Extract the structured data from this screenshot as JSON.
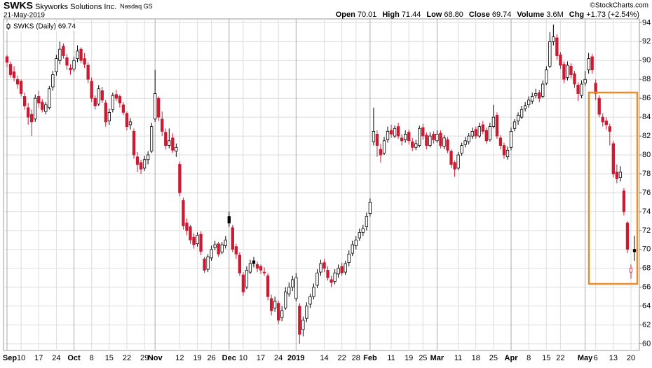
{
  "header": {
    "symbol": "SWKS",
    "name": "Skyworks Solutions Inc.",
    "exchange": "Nasdaq GS",
    "date": "21-May-2019",
    "quote": [
      {
        "label": "Open",
        "value": "70.01"
      },
      {
        "label": "High",
        "value": "71.44"
      },
      {
        "label": "Low",
        "value": "68.80"
      },
      {
        "label": "Close",
        "value": "69.74"
      },
      {
        "label": "Volume",
        "value": "3.6M"
      },
      {
        "label": "Chg",
        "value": "+1.73 (+2.54%)"
      }
    ],
    "credit": "©StockCharts.com"
  },
  "chart_data": {
    "type": "candlestick",
    "legend": "SWKS (Daily) 69.74",
    "categories": [
      "Sep",
      null,
      null,
      null,
      "10",
      null,
      null,
      null,
      null,
      "17",
      null,
      null,
      null,
      null,
      "24",
      null,
      null,
      null,
      null,
      "Oct",
      null,
      null,
      null,
      null,
      "8",
      null,
      null,
      null,
      null,
      "15",
      null,
      null,
      null,
      null,
      "22",
      null,
      null,
      null,
      null,
      "29",
      null,
      null,
      "Nov",
      null,
      null,
      null,
      null,
      null,
      null,
      "12",
      null,
      null,
      null,
      null,
      "19",
      null,
      null,
      null,
      "26",
      null,
      null,
      null,
      null,
      "Dec",
      null,
      null,
      null,
      "10",
      null,
      null,
      null,
      null,
      "17",
      null,
      null,
      null,
      null,
      "24",
      null,
      null,
      null,
      null,
      "2019",
      null,
      null,
      null,
      null,
      null,
      null,
      null,
      "14",
      null,
      null,
      null,
      null,
      "22",
      null,
      null,
      null,
      "28",
      null,
      null,
      null,
      "Feb",
      null,
      null,
      null,
      null,
      null,
      "11",
      null,
      null,
      null,
      null,
      "19",
      null,
      null,
      null,
      "25",
      null,
      null,
      null,
      "Mar",
      null,
      null,
      null,
      null,
      null,
      "11",
      null,
      null,
      null,
      null,
      "18",
      null,
      null,
      null,
      null,
      "25",
      null,
      null,
      null,
      null,
      "Apr",
      null,
      null,
      null,
      null,
      "8",
      null,
      null,
      null,
      null,
      "15",
      null,
      null,
      null,
      "22",
      null,
      null,
      null,
      null,
      null,
      null,
      "May",
      null,
      null,
      "6",
      null,
      null,
      null,
      null,
      "13",
      null,
      null,
      null,
      null,
      "20",
      null
    ],
    "ohlc": [
      [
        90.4,
        90.6,
        89.3,
        89.8
      ],
      [
        89.6,
        89.9,
        88.2,
        88.5
      ],
      [
        88.8,
        89.4,
        87.8,
        88.2
      ],
      [
        88.0,
        88.4,
        87.0,
        87.5
      ],
      [
        87.8,
        88.0,
        86.2,
        86.5
      ],
      [
        86.2,
        86.6,
        84.8,
        85.2
      ],
      [
        85.0,
        85.5,
        83.2,
        84.0
      ],
      [
        84.3,
        84.8,
        82.0,
        83.5
      ],
      [
        83.8,
        86.4,
        83.5,
        86.0
      ],
      [
        86.2,
        86.8,
        85.0,
        85.5
      ],
      [
        85.6,
        85.9,
        84.5,
        84.8
      ],
      [
        84.6,
        85.6,
        84.3,
        85.3
      ],
      [
        85.0,
        87.3,
        84.8,
        87.0
      ],
      [
        87.2,
        88.9,
        86.8,
        88.5
      ],
      [
        88.8,
        90.6,
        88.4,
        90.2
      ],
      [
        90.0,
        92.0,
        89.6,
        91.2
      ],
      [
        91.5,
        91.8,
        90.2,
        90.5
      ],
      [
        90.3,
        90.7,
        89.0,
        89.5
      ],
      [
        89.2,
        89.6,
        88.5,
        89.0
      ],
      [
        89.1,
        90.4,
        88.8,
        90.0
      ],
      [
        90.2,
        91.6,
        89.8,
        91.0
      ],
      [
        91.2,
        91.4,
        89.7,
        90.0
      ],
      [
        90.2,
        90.8,
        89.2,
        89.6
      ],
      [
        89.5,
        89.8,
        87.6,
        88.0
      ],
      [
        87.8,
        88.2,
        85.6,
        86.0
      ],
      [
        86.0,
        86.3,
        84.8,
        85.2
      ],
      [
        85.4,
        87.4,
        85.2,
        87.0
      ],
      [
        86.8,
        87.2,
        85.5,
        85.8
      ],
      [
        85.5,
        85.8,
        83.0,
        83.5
      ],
      [
        83.6,
        84.9,
        83.2,
        84.5
      ],
      [
        84.8,
        86.6,
        84.5,
        86.3
      ],
      [
        86.4,
        86.9,
        85.7,
        86.0
      ],
      [
        86.2,
        86.4,
        85.0,
        85.5
      ],
      [
        85.3,
        85.6,
        84.2,
        84.5
      ],
      [
        84.4,
        84.6,
        82.6,
        83.0
      ],
      [
        83.2,
        83.9,
        82.7,
        83.5
      ],
      [
        82.5,
        82.8,
        79.6,
        80.0
      ],
      [
        79.8,
        80.3,
        78.2,
        79.0
      ],
      [
        79.2,
        79.5,
        78.0,
        78.5
      ],
      [
        78.6,
        79.9,
        78.3,
        79.5
      ],
      [
        79.5,
        80.4,
        79.0,
        80.0
      ],
      [
        80.4,
        83.4,
        80.2,
        83.0
      ],
      [
        83.8,
        89.0,
        83.5,
        86.5
      ],
      [
        86.0,
        86.2,
        83.6,
        84.0
      ],
      [
        83.8,
        84.6,
        82.0,
        82.5
      ],
      [
        82.4,
        82.8,
        80.6,
        81.0
      ],
      [
        81.0,
        82.8,
        80.7,
        81.5
      ],
      [
        81.8,
        82.3,
        80.2,
        80.5
      ],
      [
        80.4,
        81.2,
        79.8,
        80.8
      ],
      [
        79.0,
        79.3,
        75.6,
        76.0
      ],
      [
        75.2,
        75.5,
        72.1,
        72.5
      ],
      [
        72.8,
        73.3,
        71.5,
        72.0
      ],
      [
        72.4,
        72.6,
        70.6,
        71.0
      ],
      [
        71.3,
        71.7,
        70.1,
        70.5
      ],
      [
        70.6,
        71.8,
        70.3,
        71.5
      ],
      [
        71.6,
        71.9,
        69.4,
        69.8
      ],
      [
        69.0,
        69.2,
        67.5,
        67.8
      ],
      [
        67.9,
        69.5,
        67.6,
        69.2
      ],
      [
        69.1,
        70.4,
        68.8,
        70.0
      ],
      [
        70.2,
        70.9,
        69.9,
        70.5
      ],
      [
        70.6,
        70.8,
        69.2,
        69.5
      ],
      [
        69.7,
        70.8,
        69.5,
        70.5
      ],
      [
        70.4,
        71.4,
        70.1,
        71.0
      ],
      [
        73.5,
        74.0,
        72.4,
        72.8
      ],
      [
        72.3,
        72.6,
        69.7,
        70.0
      ],
      [
        70.3,
        70.6,
        69.0,
        69.5
      ],
      [
        69.4,
        69.7,
        67.2,
        67.5
      ],
      [
        67.3,
        67.6,
        65.1,
        65.5
      ],
      [
        66.0,
        68.2,
        65.8,
        67.8
      ],
      [
        67.6,
        68.9,
        67.4,
        68.5
      ],
      [
        68.8,
        69.2,
        68.1,
        68.5
      ],
      [
        68.4,
        68.7,
        67.6,
        68.0
      ],
      [
        68.2,
        68.4,
        67.4,
        67.8
      ],
      [
        67.6,
        68.1,
        67.2,
        67.5
      ],
      [
        67.2,
        67.5,
        64.6,
        65.0
      ],
      [
        64.8,
        65.2,
        63.0,
        63.5
      ],
      [
        63.8,
        65.0,
        63.4,
        64.5
      ],
      [
        64.3,
        64.6,
        62.1,
        62.5
      ],
      [
        62.8,
        64.0,
        62.4,
        63.5
      ],
      [
        63.8,
        66.0,
        63.6,
        65.5
      ],
      [
        65.3,
        66.5,
        65.0,
        66.0
      ],
      [
        66.0,
        67.2,
        65.6,
        66.8
      ],
      [
        64.8,
        67.5,
        64.5,
        67.0
      ],
      [
        64.0,
        64.3,
        60.0,
        61.0
      ],
      [
        61.5,
        62.9,
        60.8,
        62.5
      ],
      [
        62.7,
        64.4,
        62.3,
        64.0
      ],
      [
        64.2,
        65.3,
        63.8,
        65.0
      ],
      [
        65.0,
        66.4,
        64.7,
        66.0
      ],
      [
        66.2,
        67.9,
        65.9,
        67.5
      ],
      [
        67.6,
        68.9,
        67.2,
        68.5
      ],
      [
        68.6,
        69.0,
        67.6,
        68.0
      ],
      [
        67.8,
        68.2,
        66.7,
        67.0
      ],
      [
        66.8,
        67.2,
        66.0,
        66.5
      ],
      [
        66.6,
        67.9,
        66.3,
        67.5
      ],
      [
        67.4,
        68.4,
        67.0,
        68.0
      ],
      [
        68.2,
        68.6,
        67.2,
        67.5
      ],
      [
        67.6,
        68.8,
        67.3,
        68.5
      ],
      [
        68.6,
        69.9,
        68.2,
        69.5
      ],
      [
        69.6,
        70.9,
        69.3,
        70.5
      ],
      [
        70.4,
        71.4,
        70.0,
        71.0
      ],
      [
        71.2,
        72.2,
        70.9,
        71.8
      ],
      [
        71.8,
        72.6,
        71.4,
        72.2
      ],
      [
        72.4,
        73.9,
        72.0,
        73.5
      ],
      [
        73.8,
        75.4,
        73.5,
        75.0
      ],
      [
        81.4,
        85.0,
        81.0,
        82.5
      ],
      [
        82.2,
        82.6,
        79.8,
        81.0
      ],
      [
        80.6,
        81.2,
        79.2,
        80.0
      ],
      [
        80.2,
        81.9,
        80.0,
        81.5
      ],
      [
        81.6,
        83.0,
        81.3,
        82.5
      ],
      [
        82.6,
        83.2,
        81.8,
        82.2
      ],
      [
        82.0,
        83.1,
        81.8,
        82.8
      ],
      [
        83.0,
        83.4,
        81.7,
        82.0
      ],
      [
        81.8,
        82.2,
        81.0,
        81.5
      ],
      [
        81.6,
        82.6,
        81.3,
        82.2
      ],
      [
        82.4,
        82.7,
        81.1,
        81.5
      ],
      [
        81.4,
        81.8,
        80.4,
        80.8
      ],
      [
        80.8,
        81.6,
        80.5,
        81.2
      ],
      [
        81.0,
        83.1,
        80.8,
        82.8
      ],
      [
        82.9,
        83.3,
        81.6,
        82.0
      ],
      [
        82.1,
        82.4,
        80.6,
        81.0
      ],
      [
        81.0,
        82.4,
        80.8,
        82.0
      ],
      [
        82.2,
        82.5,
        81.2,
        81.6
      ],
      [
        81.5,
        82.6,
        81.3,
        82.2
      ],
      [
        82.3,
        82.6,
        80.7,
        81.0
      ],
      [
        80.9,
        82.1,
        80.6,
        81.8
      ],
      [
        81.6,
        81.9,
        80.2,
        80.5
      ],
      [
        80.4,
        80.6,
        78.6,
        79.0
      ],
      [
        79.2,
        79.4,
        77.7,
        78.5
      ],
      [
        78.6,
        80.3,
        78.4,
        80.0
      ],
      [
        80.2,
        81.3,
        79.9,
        81.0
      ],
      [
        81.1,
        81.9,
        80.8,
        81.5
      ],
      [
        81.4,
        82.3,
        81.1,
        82.0
      ],
      [
        82.0,
        82.9,
        81.7,
        82.5
      ],
      [
        82.7,
        83.0,
        81.7,
        82.0
      ],
      [
        82.0,
        83.4,
        81.8,
        83.0
      ],
      [
        83.2,
        83.6,
        82.2,
        82.5
      ],
      [
        82.6,
        82.9,
        81.2,
        81.5
      ],
      [
        81.6,
        83.4,
        81.4,
        83.0
      ],
      [
        83.0,
        85.3,
        82.8,
        84.0
      ],
      [
        84.2,
        84.5,
        81.7,
        82.0
      ],
      [
        81.8,
        82.1,
        80.6,
        81.0
      ],
      [
        81.0,
        81.3,
        79.6,
        80.0
      ],
      [
        79.8,
        80.9,
        79.5,
        80.5
      ],
      [
        80.8,
        82.9,
        80.5,
        82.5
      ],
      [
        82.8,
        83.8,
        82.5,
        83.5
      ],
      [
        83.6,
        84.5,
        83.2,
        84.2
      ],
      [
        84.0,
        85.2,
        83.8,
        84.8
      ],
      [
        84.9,
        85.6,
        84.6,
        85.2
      ],
      [
        85.3,
        86.2,
        85.0,
        85.8
      ],
      [
        85.7,
        86.6,
        85.4,
        86.2
      ],
      [
        86.3,
        87.0,
        86.0,
        86.5
      ],
      [
        86.6,
        86.9,
        85.6,
        86.0
      ],
      [
        86.2,
        87.9,
        86.0,
        87.5
      ],
      [
        87.6,
        89.4,
        87.4,
        89.0
      ],
      [
        89.4,
        93.0,
        89.2,
        92.0
      ],
      [
        92.0,
        93.8,
        91.6,
        92.5
      ],
      [
        92.4,
        92.8,
        90.1,
        90.5
      ],
      [
        90.6,
        90.9,
        89.1,
        89.5
      ],
      [
        89.6,
        89.9,
        87.6,
        88.0
      ],
      [
        88.2,
        89.9,
        87.9,
        89.5
      ],
      [
        89.4,
        89.7,
        88.1,
        88.5
      ],
      [
        88.6,
        88.9,
        87.1,
        87.5
      ],
      [
        87.4,
        87.7,
        85.7,
        86.5
      ],
      [
        86.3,
        87.9,
        86.0,
        87.5
      ],
      [
        87.6,
        88.9,
        87.3,
        88.0
      ],
      [
        89.0,
        90.8,
        88.6,
        90.2
      ],
      [
        90.4,
        90.7,
        88.6,
        89.0
      ],
      [
        87.6,
        88.0,
        85.8,
        86.5
      ],
      [
        86.0,
        86.3,
        84.0,
        84.3
      ],
      [
        84.0,
        84.4,
        83.0,
        83.5
      ],
      [
        83.6,
        84.0,
        82.7,
        83.2
      ],
      [
        83.0,
        83.3,
        81.0,
        82.5
      ],
      [
        81.2,
        81.5,
        77.6,
        78.0
      ],
      [
        78.2,
        79.0,
        77.0,
        77.5
      ],
      [
        77.6,
        78.8,
        77.2,
        78.2
      ],
      [
        76.2,
        76.5,
        73.6,
        74.0
      ],
      [
        72.8,
        73.0,
        69.6,
        70.0
      ],
      [
        67.6,
        68.4,
        66.9,
        68.01
      ],
      [
        70.01,
        71.44,
        68.8,
        69.74
      ]
    ],
    "up_color": "#000000",
    "down_color": "#cc1a33",
    "ylim": [
      59.3,
      94.4
    ],
    "yticks": [
      60,
      62,
      64,
      66,
      68,
      70,
      72,
      74,
      76,
      78,
      80,
      82,
      84,
      86,
      88,
      90,
      92,
      94
    ],
    "grid": true
  }
}
